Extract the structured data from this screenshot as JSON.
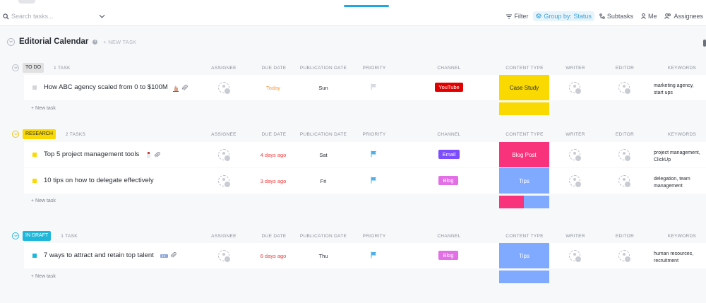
{
  "toolbar": {
    "search_placeholder": "Search tasks...",
    "filter": "Filter",
    "group_by": "Group by: Status",
    "subtasks": "Subtasks",
    "me": "Me",
    "assignees": "Assignees"
  },
  "list": {
    "title": "Editorial Calendar",
    "new_task": "+ NEW TASK"
  },
  "columns": {
    "assignee": "ASSIGNEE",
    "due_date": "DUE DATE",
    "publication_date": "PUBLICATION DATE",
    "priority": "PRIORITY",
    "channel": "CHANNEL",
    "content_type": "CONTENT TYPE",
    "writer": "WRITER",
    "editor": "EDITOR",
    "keywords": "KEYWORDS"
  },
  "add_task_label": "+ New task",
  "colors": {
    "todo": "#e1e1e1",
    "research": "#fad900",
    "in_draft": "#1fb7d9",
    "youtube": "#e00000",
    "email": "#7c4dff",
    "blog": "#e26fe6",
    "case_study": "#fad900",
    "blog_post": "#f9337b",
    "tips": "#80aaff"
  },
  "groups": {
    "todo": {
      "status": "TO DO",
      "count": "1 TASK",
      "tasks": [
        {
          "name": "How ABC agency scaled from 0 to $100M",
          "due": "Today",
          "pub": "Sun",
          "channel": "YouTube",
          "content_type": "Case Study",
          "keywords_1": "marketing agency,",
          "keywords_2": "start ups"
        }
      ]
    },
    "research": {
      "status": "RESEARCH",
      "count": "2 TASKS",
      "tasks": [
        {
          "name": "Top 5 project management tools",
          "due": "4 days ago",
          "pub": "Sat",
          "channel": "Email",
          "content_type": "Blog Post",
          "keywords_1": "project management,",
          "keywords_2": "ClickUp"
        },
        {
          "name": "10 tips on how to delegate effectively",
          "due": "3 days ago",
          "pub": "Fri",
          "channel": "Blog",
          "content_type": "Tips",
          "keywords_1": "delegation, team",
          "keywords_2": "management"
        }
      ]
    },
    "in_draft": {
      "status": "IN DRAFT",
      "count": "1 TASK",
      "tasks": [
        {
          "name": "7 ways to attract and retain top talent",
          "due": "6 days ago",
          "pub": "Thu",
          "channel": "Blog",
          "content_type": "Tips",
          "keywords_1": "human resources,",
          "keywords_2": "recruitment"
        }
      ]
    }
  }
}
